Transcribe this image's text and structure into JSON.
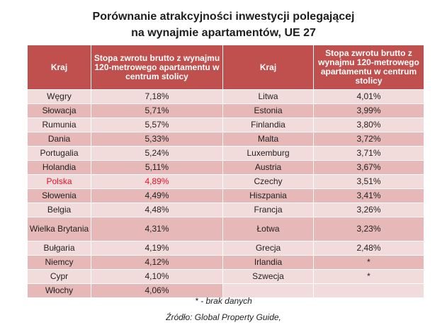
{
  "title": {
    "line1": "Porównanie atrakcyjności inwestycji polegającej",
    "line2": "na wynajmie apartamentów, UE 27"
  },
  "headers": {
    "country_left": "Kraj",
    "rate_left": "Stopa zwrotu brutto z wynajmu 120-metrowego apartamentu  w centrum stolicy",
    "country_right": "Kraj",
    "rate_right": "Stopa zwrotu brutto  z wynajmu 120-metrowego apartamentu  w centrum stolicy"
  },
  "rows": [
    {
      "c1": "Węgry",
      "v1": "7,18%",
      "c2": "Litwa",
      "v2": "4,01%"
    },
    {
      "c1": "Słowacja",
      "v1": "5,71%",
      "c2": "Estonia",
      "v2": "3,99%"
    },
    {
      "c1": "Rumunia",
      "v1": "5,57%",
      "c2": "Finlandia",
      "v2": "3,80%"
    },
    {
      "c1": "Dania",
      "v1": "5,33%",
      "c2": "Malta",
      "v2": "3,72%"
    },
    {
      "c1": "Portugalia",
      "v1": "5,24%",
      "c2": "Luxemburg",
      "v2": "3,71%"
    },
    {
      "c1": "Holandia",
      "v1": "5,11%",
      "c2": "Austria",
      "v2": "3,67%"
    },
    {
      "c1": "Polska",
      "v1": "4,89%",
      "c2": "Czechy",
      "v2": "3,51%"
    },
    {
      "c1": "Słowenia",
      "v1": "4,49%",
      "c2": "Hiszpania",
      "v2": "3,41%"
    },
    {
      "c1": "Belgia",
      "v1": "4,48%",
      "c2": "Francja",
      "v2": "3,26%"
    },
    {
      "c1": "Wielka Brytania",
      "v1": "4,31%",
      "c2": "Łotwa",
      "v2": "3,23%"
    },
    {
      "c1": "Bułgaria",
      "v1": "4,19%",
      "c2": "Grecja",
      "v2": "2,48%"
    },
    {
      "c1": "Niemcy",
      "v1": "4,12%",
      "c2": "Irlandia",
      "v2": "*"
    },
    {
      "c1": "Cypr",
      "v1": "4,10%",
      "c2": "Szwecja",
      "v2": "*"
    },
    {
      "c1": "Włochy",
      "v1": "4,06%",
      "c2": "",
      "v2": ""
    }
  ],
  "highlight_color": "#e8102a",
  "footnote": "* - brak danych",
  "source": "Źródło: Global Property  Guide,"
}
